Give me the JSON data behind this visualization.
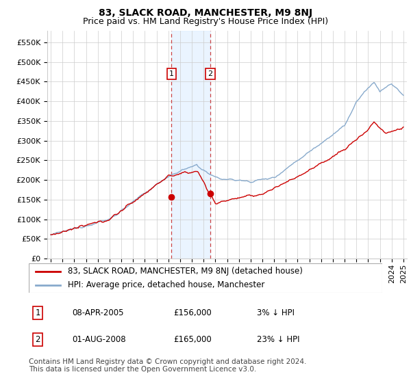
{
  "title": "83, SLACK ROAD, MANCHESTER, M9 8NJ",
  "subtitle": "Price paid vs. HM Land Registry's House Price Index (HPI)",
  "ytick_values": [
    0,
    50000,
    100000,
    150000,
    200000,
    250000,
    300000,
    350000,
    400000,
    450000,
    500000,
    550000
  ],
  "ylim": [
    0,
    580000
  ],
  "xstart_year": 1995,
  "xend_year": 2025,
  "sale1_year": 2005.27,
  "sale1_price": 156000,
  "sale2_year": 2008.58,
  "sale2_price": 165000,
  "legend_entries": [
    "83, SLACK ROAD, MANCHESTER, M9 8NJ (detached house)",
    "HPI: Average price, detached house, Manchester"
  ],
  "table_rows": [
    [
      "1",
      "08-APR-2005",
      "£156,000",
      "3% ↓ HPI"
    ],
    [
      "2",
      "01-AUG-2008",
      "£165,000",
      "23% ↓ HPI"
    ]
  ],
  "footnote": "Contains HM Land Registry data © Crown copyright and database right 2024.\nThis data is licensed under the Open Government Licence v3.0.",
  "line_color_property": "#cc0000",
  "line_color_hpi": "#88aacc",
  "shade_color": "#ddeeff",
  "vline_color": "#cc4444",
  "grid_color": "#cccccc",
  "background_color": "#ffffff",
  "title_fontsize": 10,
  "subtitle_fontsize": 9,
  "tick_fontsize": 8,
  "legend_fontsize": 8.5,
  "table_fontsize": 8.5,
  "footnote_fontsize": 7.5
}
